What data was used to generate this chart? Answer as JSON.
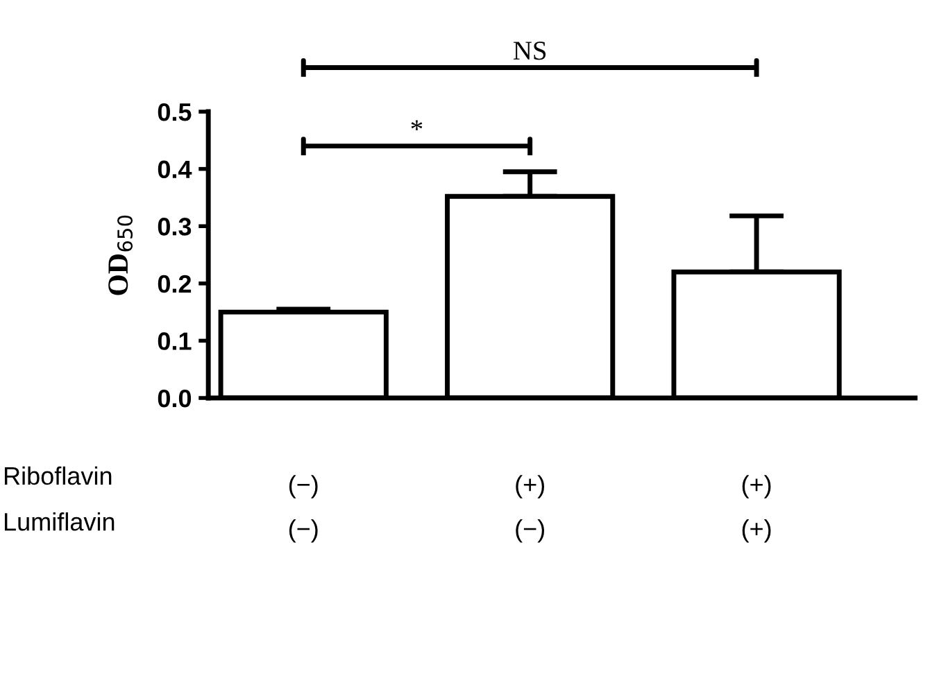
{
  "chart_data": {
    "type": "bar",
    "ylabel": "OD$_{650}$",
    "categories": [
      "(−)\n(−)",
      "(+)\n(−)",
      "(+)\n(+)"
    ],
    "values": [
      0.15,
      0.352,
      0.22
    ],
    "errors": [
      [
        0.15,
        0.155
      ],
      [
        0.352,
        0.395
      ],
      [
        0.22,
        0.318
      ]
    ],
    "color": "#ffffff",
    "ylim": [
      0,
      0.5
    ],
    "yticks": [
      {
        "value": 0,
        "label": "0.0"
      },
      {
        "value": 0.1,
        "label": "0.1"
      },
      {
        "value": 0.2,
        "label": "0.2"
      },
      {
        "value": 0.3,
        "label": "0.3"
      },
      {
        "value": 0.4,
        "label": "0.4"
      },
      {
        "value": 0.5,
        "label": "0.5"
      }
    ],
    "grid": false,
    "legend": false,
    "annotations": [
      "Riboflavin",
      "Lumiflavin",
      "*",
      "NS"
    ]
  }
}
